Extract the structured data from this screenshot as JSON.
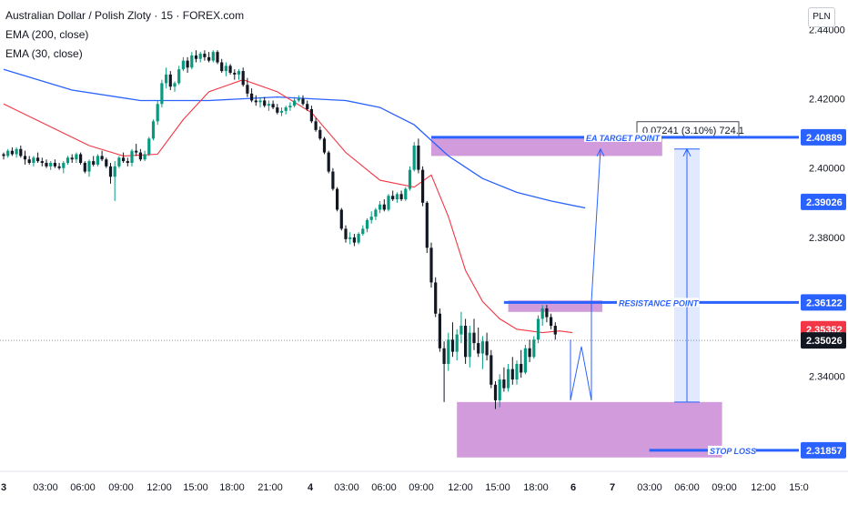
{
  "header": {
    "symbol_title": "Australian Dollar / Polish Zloty · 15 · FOREX.com",
    "indicator_1": "EMA (200, close)",
    "indicator_2": "EMA (30, close)",
    "currency": "PLN"
  },
  "chart_data": {
    "type": "candlestick",
    "y_range": [
      2.3125,
      2.4485
    ],
    "y_ticks": [
      2.34,
      2.36,
      2.38,
      2.4,
      2.42,
      2.44
    ],
    "x_tick_labels": [
      "3",
      "03:00",
      "06:00",
      "09:00",
      "12:00",
      "15:00",
      "18:00",
      "21:00",
      "4",
      "03:00",
      "06:00",
      "09:00",
      "12:00",
      "15:00",
      "18:00",
      "6",
      "7",
      "03:00",
      "06:00",
      "09:00",
      "12:00",
      "15:0"
    ],
    "price_labels": [
      {
        "value": 2.40889,
        "text": "2.40889",
        "color": "#2962ff"
      },
      {
        "value": 2.39026,
        "text": "2.39026",
        "color": "#2962ff"
      },
      {
        "value": 2.36122,
        "text": "2.36122",
        "color": "#2962ff"
      },
      {
        "value": 2.35352,
        "text": "2.35352",
        "color": "#f23645"
      },
      {
        "value": 2.35026,
        "text": "2.35026",
        "color": "#131722"
      },
      {
        "value": 2.31857,
        "text": "2.31857",
        "color": "#2962ff"
      }
    ],
    "last_price": 2.35026,
    "candles": [
      [
        2.404,
        2.4045,
        2.4025,
        2.4035
      ],
      [
        2.4035,
        2.4055,
        2.403,
        2.405
      ],
      [
        2.405,
        2.406,
        2.4035,
        2.404
      ],
      [
        2.404,
        2.406,
        2.403,
        2.4055
      ],
      [
        2.4055,
        2.4065,
        2.403,
        2.4035
      ],
      [
        2.4035,
        2.405,
        2.401,
        2.4025
      ],
      [
        2.4025,
        2.4035,
        2.401,
        2.4015
      ],
      [
        2.4015,
        2.4035,
        2.4005,
        2.403
      ],
      [
        2.403,
        2.4045,
        2.4015,
        2.402
      ],
      [
        2.402,
        2.403,
        2.4005,
        2.4015
      ],
      [
        2.4015,
        2.4025,
        2.4,
        2.4005
      ],
      [
        2.4005,
        2.402,
        2.3995,
        2.4015
      ],
      [
        2.4015,
        2.4025,
        2.4,
        2.4005
      ],
      [
        2.4005,
        2.4015,
        2.3995,
        2.4
      ],
      [
        2.4,
        2.402,
        2.3985,
        2.4015
      ],
      [
        2.4015,
        2.4035,
        2.401,
        2.403
      ],
      [
        2.403,
        2.404,
        2.4015,
        2.4025
      ],
      [
        2.4025,
        2.4045,
        2.4015,
        2.404
      ],
      [
        2.404,
        2.4045,
        2.401,
        2.4015
      ],
      [
        2.4015,
        2.402,
        2.3985,
        2.399
      ],
      [
        2.399,
        2.4025,
        2.3975,
        2.402
      ],
      [
        2.402,
        2.4035,
        2.4005,
        2.401
      ],
      [
        2.401,
        2.404,
        2.4005,
        2.4035
      ],
      [
        2.4035,
        2.405,
        2.402,
        2.4025
      ],
      [
        2.4025,
        2.403,
        2.4,
        2.4005
      ],
      [
        2.4005,
        2.4015,
        2.3955,
        2.3975
      ],
      [
        2.3975,
        2.402,
        2.3905,
        2.4005
      ],
      [
        2.4005,
        2.4035,
        2.4,
        2.403
      ],
      [
        2.403,
        2.4045,
        2.4015,
        2.402
      ],
      [
        2.402,
        2.403,
        2.4005,
        2.4015
      ],
      [
        2.4015,
        2.4055,
        2.4005,
        2.405
      ],
      [
        2.405,
        2.407,
        2.4035,
        2.4045
      ],
      [
        2.4045,
        2.4055,
        2.402,
        2.4025
      ],
      [
        2.4025,
        2.405,
        2.402,
        2.404
      ],
      [
        2.404,
        2.409,
        2.4035,
        2.4085
      ],
      [
        2.4085,
        2.414,
        2.408,
        2.4135
      ],
      [
        2.4135,
        2.4195,
        2.4125,
        2.4185
      ],
      [
        2.4185,
        2.4255,
        2.4175,
        2.4245
      ],
      [
        2.4245,
        2.429,
        2.423,
        2.427
      ],
      [
        2.427,
        2.428,
        2.4225,
        2.4235
      ],
      [
        2.4235,
        2.425,
        2.422,
        2.4245
      ],
      [
        2.4245,
        2.4295,
        2.424,
        2.4285
      ],
      [
        2.4285,
        2.432,
        2.428,
        2.431
      ],
      [
        2.431,
        2.432,
        2.4275,
        2.429
      ],
      [
        2.429,
        2.4335,
        2.4285,
        2.4325
      ],
      [
        2.4325,
        2.434,
        2.4305,
        2.4315
      ],
      [
        2.4315,
        2.4335,
        2.4305,
        2.433
      ],
      [
        2.433,
        2.434,
        2.431,
        2.432
      ],
      [
        2.432,
        2.4335,
        2.4305,
        2.431
      ],
      [
        2.431,
        2.434,
        2.4305,
        2.4335
      ],
      [
        2.4335,
        2.434,
        2.43,
        2.4305
      ],
      [
        2.4305,
        2.4315,
        2.4275,
        2.428
      ],
      [
        2.428,
        2.4305,
        2.4265,
        2.4295
      ],
      [
        2.4295,
        2.43,
        2.427,
        2.4275
      ],
      [
        2.4275,
        2.4285,
        2.4255,
        2.427
      ],
      [
        2.427,
        2.4285,
        2.4255,
        2.428
      ],
      [
        2.428,
        2.429,
        2.4235,
        2.424
      ],
      [
        2.424,
        2.426,
        2.4205,
        2.4215
      ],
      [
        2.4215,
        2.423,
        2.419,
        2.4195
      ],
      [
        2.4195,
        2.421,
        2.418,
        2.419
      ],
      [
        2.419,
        2.4205,
        2.4175,
        2.4195
      ],
      [
        2.4195,
        2.4205,
        2.4175,
        2.418
      ],
      [
        2.418,
        2.4195,
        2.4165,
        2.4185
      ],
      [
        2.4185,
        2.4195,
        2.417,
        2.4175
      ],
      [
        2.4175,
        2.4185,
        2.4155,
        2.416
      ],
      [
        2.416,
        2.4175,
        2.415,
        2.4165
      ],
      [
        2.4165,
        2.418,
        2.4155,
        2.4175
      ],
      [
        2.4175,
        2.419,
        2.4165,
        2.418
      ],
      [
        2.418,
        2.4205,
        2.4175,
        2.4195
      ],
      [
        2.4195,
        2.421,
        2.419,
        2.42
      ],
      [
        2.42,
        2.421,
        2.418,
        2.4185
      ],
      [
        2.4185,
        2.4195,
        2.4165,
        2.417
      ],
      [
        2.417,
        2.418,
        2.413,
        2.4135
      ],
      [
        2.4135,
        2.4145,
        2.4105,
        2.411
      ],
      [
        2.411,
        2.412,
        2.408,
        2.4085
      ],
      [
        2.4085,
        2.409,
        2.404,
        2.4045
      ],
      [
        2.4045,
        2.405,
        2.3985,
        2.399
      ],
      [
        2.399,
        2.4,
        2.3935,
        2.394
      ],
      [
        2.394,
        2.3945,
        2.3875,
        2.388
      ],
      [
        2.388,
        2.3885,
        2.382,
        2.3825
      ],
      [
        2.3825,
        2.3835,
        2.3785,
        2.3795
      ],
      [
        2.3795,
        2.3815,
        2.378,
        2.38
      ],
      [
        2.38,
        2.381,
        2.3775,
        2.3785
      ],
      [
        2.3785,
        2.3815,
        2.378,
        2.381
      ],
      [
        2.381,
        2.3835,
        2.3805,
        2.3825
      ],
      [
        2.3825,
        2.3855,
        2.3815,
        2.385
      ],
      [
        2.385,
        2.3875,
        2.384,
        2.386
      ],
      [
        2.386,
        2.3885,
        2.385,
        2.388
      ],
      [
        2.388,
        2.3905,
        2.387,
        2.3895
      ],
      [
        2.3895,
        2.391,
        2.3875,
        2.388
      ],
      [
        2.388,
        2.3925,
        2.3875,
        2.392
      ],
      [
        2.392,
        2.3935,
        2.3905,
        2.391
      ],
      [
        2.391,
        2.393,
        2.39,
        2.3925
      ],
      [
        2.3925,
        2.3935,
        2.3905,
        2.391
      ],
      [
        2.391,
        2.3945,
        2.3905,
        2.394
      ],
      [
        2.394,
        2.4005,
        2.3935,
        2.3995
      ],
      [
        2.3995,
        2.4075,
        2.399,
        2.4065
      ],
      [
        2.4065,
        2.4085,
        2.3985,
        2.3995
      ],
      [
        2.3995,
        2.4005,
        2.389,
        2.39
      ],
      [
        2.39,
        2.3905,
        2.3755,
        2.377
      ],
      [
        2.377,
        2.3785,
        2.3655,
        2.367
      ],
      [
        2.367,
        2.3685,
        2.357,
        2.358
      ],
      [
        2.358,
        2.3595,
        2.347,
        2.348
      ],
      [
        2.348,
        2.35,
        2.3325,
        2.3435
      ],
      [
        2.3435,
        2.3525,
        2.3415,
        2.3505
      ],
      [
        2.3505,
        2.3555,
        2.3455,
        2.347
      ],
      [
        2.347,
        2.3535,
        2.3445,
        2.352
      ],
      [
        2.352,
        2.3585,
        2.3495,
        2.3545
      ],
      [
        2.3545,
        2.3565,
        2.3435,
        2.3455
      ],
      [
        2.3455,
        2.3545,
        2.3425,
        2.3525
      ],
      [
        2.3525,
        2.3565,
        2.3475,
        2.3495
      ],
      [
        2.3495,
        2.354,
        2.3455,
        2.3465
      ],
      [
        2.3465,
        2.3515,
        2.342,
        2.35
      ],
      [
        2.35,
        2.3525,
        2.3445,
        2.346
      ],
      [
        2.346,
        2.3475,
        2.3365,
        2.3375
      ],
      [
        2.3375,
        2.3385,
        2.3305,
        2.333
      ],
      [
        2.333,
        2.3405,
        2.331,
        2.339
      ],
      [
        2.339,
        2.3425,
        2.3355,
        2.3365
      ],
      [
        2.3365,
        2.3435,
        2.3355,
        2.342
      ],
      [
        2.342,
        2.3455,
        2.3375,
        2.339
      ],
      [
        2.339,
        2.3445,
        2.3375,
        2.3435
      ],
      [
        2.3435,
        2.3475,
        2.3395,
        2.341
      ],
      [
        2.341,
        2.349,
        2.3405,
        2.348
      ],
      [
        2.348,
        2.3505,
        2.344,
        2.3455
      ],
      [
        2.3455,
        2.3515,
        2.345,
        2.3505
      ],
      [
        2.3505,
        2.3575,
        2.3495,
        2.3565
      ],
      [
        2.3565,
        2.3605,
        2.3545,
        2.3595
      ],
      [
        2.3595,
        2.3605,
        2.3555,
        2.357
      ],
      [
        2.357,
        2.358,
        2.3535,
        2.3545
      ],
      [
        2.3545,
        2.3555,
        2.3505,
        2.352
      ]
    ],
    "ema30": [
      [
        0,
        2.4185
      ],
      [
        10,
        2.4125
      ],
      [
        20,
        2.4065
      ],
      [
        28,
        2.4035
      ],
      [
        36,
        2.404
      ],
      [
        42,
        2.414
      ],
      [
        48,
        2.422
      ],
      [
        56,
        2.4255
      ],
      [
        64,
        2.422
      ],
      [
        72,
        2.416
      ],
      [
        80,
        2.4045
      ],
      [
        88,
        2.3965
      ],
      [
        96,
        2.3945
      ],
      [
        100,
        2.398
      ],
      [
        104,
        2.386
      ],
      [
        108,
        2.3705
      ],
      [
        112,
        2.3615
      ],
      [
        116,
        2.3565
      ],
      [
        120,
        2.3535
      ],
      [
        126,
        2.3525
      ],
      [
        130,
        2.353
      ],
      [
        133,
        2.3525
      ]
    ],
    "ema200": [
      [
        0,
        2.4285
      ],
      [
        16,
        2.4225
      ],
      [
        32,
        2.4195
      ],
      [
        48,
        2.4195
      ],
      [
        64,
        2.4205
      ],
      [
        80,
        2.4195
      ],
      [
        88,
        2.4175
      ],
      [
        96,
        2.4125
      ],
      [
        104,
        2.4035
      ],
      [
        112,
        2.397
      ],
      [
        120,
        2.393
      ],
      [
        128,
        2.3905
      ],
      [
        136,
        2.3885
      ]
    ],
    "zones": [
      {
        "type": "target",
        "top": 2.4085,
        "bottom": 2.4035,
        "from": 100,
        "to": 154
      },
      {
        "type": "resistance",
        "top": 2.3618,
        "bottom": 2.3585,
        "from": 118,
        "to": 140
      },
      {
        "type": "stop",
        "top": 2.3325,
        "bottom": 2.3165,
        "from": 106,
        "to": 168
      }
    ],
    "levels": [
      {
        "value": 2.40889,
        "from": 100,
        "label": "EA TARGET POINT"
      },
      {
        "value": 2.36122,
        "from": 117,
        "label": "RESISTANCE POINT"
      },
      {
        "value": 2.31857,
        "from": 151,
        "label": "STOP LOSS"
      }
    ],
    "measurement": {
      "from_value": 2.3325,
      "to_value": 2.4055,
      "label": "0.07241 (3.10%) 724.1"
    },
    "projection": [
      [
        134,
        2.3505
      ],
      [
        134,
        2.333
      ],
      [
        137,
        2.3485
      ],
      [
        140,
        2.333
      ],
      [
        140,
        2.3512
      ],
      [
        140,
        2.3615
      ],
      [
        142,
        2.4055
      ]
    ]
  }
}
